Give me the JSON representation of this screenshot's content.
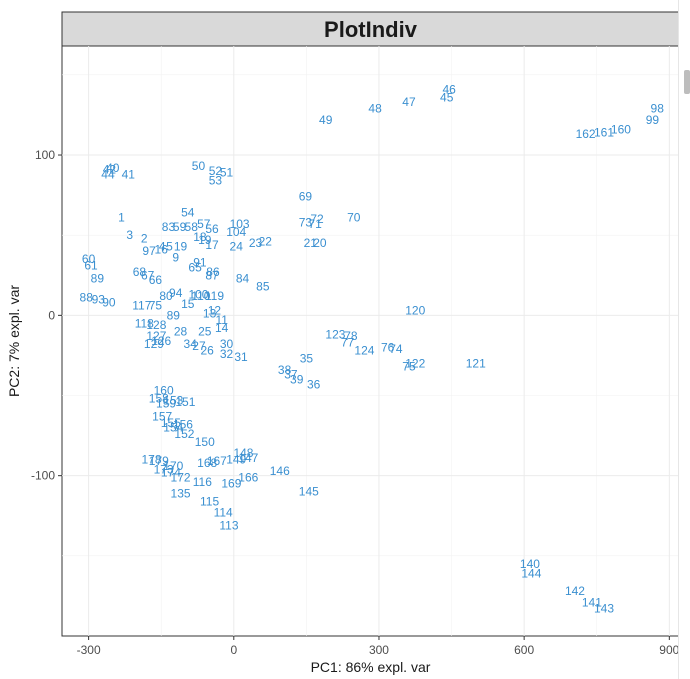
{
  "chart_data": {
    "type": "scatter",
    "title": "PlotIndiv",
    "xlabel": "PC1: 86% expl. var",
    "ylabel": "PC2: 7% expl. var",
    "xlim": [
      -355,
      920
    ],
    "ylim": [
      -200,
      168
    ],
    "x_ticks": [
      -300,
      0,
      300,
      600,
      900
    ],
    "y_ticks": [
      -100,
      0,
      100
    ],
    "grid": true,
    "legend": "none",
    "point_color": "#3a8fd0",
    "points": [
      {
        "label": "46",
        "x": 445,
        "y": 141
      },
      {
        "label": "45",
        "x": 440,
        "y": 136
      },
      {
        "label": "47",
        "x": 362,
        "y": 133
      },
      {
        "label": "48",
        "x": 292,
        "y": 129
      },
      {
        "label": "49",
        "x": 190,
        "y": 122
      },
      {
        "label": "98",
        "x": 875,
        "y": 129
      },
      {
        "label": "99",
        "x": 865,
        "y": 122
      },
      {
        "label": "160",
        "x": 800,
        "y": 116
      },
      {
        "label": "161",
        "x": 765,
        "y": 114
      },
      {
        "label": "162",
        "x": 727,
        "y": 113
      },
      {
        "label": "40",
        "x": -250,
        "y": 92
      },
      {
        "label": "42",
        "x": -257,
        "y": 91
      },
      {
        "label": "44",
        "x": -260,
        "y": 88
      },
      {
        "label": "41",
        "x": -218,
        "y": 88
      },
      {
        "label": "50",
        "x": -73,
        "y": 93
      },
      {
        "label": "52",
        "x": -38,
        "y": 90
      },
      {
        "label": "51",
        "x": -15,
        "y": 89
      },
      {
        "label": "53",
        "x": -38,
        "y": 84
      },
      {
        "label": "69",
        "x": 148,
        "y": 74
      },
      {
        "label": "54",
        "x": -95,
        "y": 64
      },
      {
        "label": "1",
        "x": -232,
        "y": 61
      },
      {
        "label": "57",
        "x": -62,
        "y": 57
      },
      {
        "label": "103",
        "x": 12,
        "y": 57
      },
      {
        "label": "70",
        "x": 248,
        "y": 61
      },
      {
        "label": "72",
        "x": 172,
        "y": 60
      },
      {
        "label": "73",
        "x": 148,
        "y": 58
      },
      {
        "label": "71",
        "x": 168,
        "y": 57
      },
      {
        "label": "83",
        "x": -135,
        "y": 55
      },
      {
        "label": "59",
        "x": -112,
        "y": 55
      },
      {
        "label": "58",
        "x": -88,
        "y": 55
      },
      {
        "label": "56",
        "x": -45,
        "y": 54
      },
      {
        "label": "104",
        "x": 5,
        "y": 52
      },
      {
        "label": "3",
        "x": -215,
        "y": 50
      },
      {
        "label": "2",
        "x": -185,
        "y": 48
      },
      {
        "label": "18",
        "x": -70,
        "y": 49
      },
      {
        "label": "19",
        "x": -60,
        "y": 47
      },
      {
        "label": "17",
        "x": -45,
        "y": 44
      },
      {
        "label": "24",
        "x": 5,
        "y": 43
      },
      {
        "label": "23",
        "x": 45,
        "y": 45
      },
      {
        "label": "22",
        "x": 65,
        "y": 46
      },
      {
        "label": "21",
        "x": 158,
        "y": 45
      },
      {
        "label": "20",
        "x": 178,
        "y": 45
      },
      {
        "label": "97",
        "x": -175,
        "y": 40
      },
      {
        "label": "16",
        "x": -150,
        "y": 41
      },
      {
        "label": "4",
        "x": -148,
        "y": 43
      },
      {
        "label": "5",
        "x": -133,
        "y": 43
      },
      {
        "label": "19",
        "x": -110,
        "y": 43
      },
      {
        "label": "9",
        "x": -120,
        "y": 36
      },
      {
        "label": "60",
        "x": -300,
        "y": 35
      },
      {
        "label": "61",
        "x": -295,
        "y": 31
      },
      {
        "label": "65",
        "x": -80,
        "y": 30
      },
      {
        "label": "91",
        "x": -70,
        "y": 33
      },
      {
        "label": "68",
        "x": -195,
        "y": 27
      },
      {
        "label": "67",
        "x": -178,
        "y": 25
      },
      {
        "label": "66",
        "x": -162,
        "y": 22
      },
      {
        "label": "86",
        "x": -43,
        "y": 27
      },
      {
        "label": "87",
        "x": -45,
        "y": 25
      },
      {
        "label": "84",
        "x": 18,
        "y": 23
      },
      {
        "label": "85",
        "x": 60,
        "y": 18
      },
      {
        "label": "89",
        "x": -282,
        "y": 23
      },
      {
        "label": "88",
        "x": -305,
        "y": 11
      },
      {
        "label": "93",
        "x": -280,
        "y": 10
      },
      {
        "label": "90",
        "x": -258,
        "y": 8
      },
      {
        "label": "80",
        "x": -140,
        "y": 12
      },
      {
        "label": "94",
        "x": -120,
        "y": 14
      },
      {
        "label": "100",
        "x": -73,
        "y": 13
      },
      {
        "label": "110",
        "x": -68,
        "y": 12
      },
      {
        "label": "119",
        "x": -40,
        "y": 12
      },
      {
        "label": "117",
        "x": -190,
        "y": 6
      },
      {
        "label": "75",
        "x": -162,
        "y": 6
      },
      {
        "label": "15",
        "x": -95,
        "y": 7
      },
      {
        "label": "13",
        "x": -50,
        "y": 1
      },
      {
        "label": "120",
        "x": 375,
        "y": 3
      },
      {
        "label": "12",
        "x": -40,
        "y": 3
      },
      {
        "label": "11",
        "x": -25,
        "y": -3
      },
      {
        "label": "14",
        "x": -25,
        "y": -8
      },
      {
        "label": "89",
        "x": -125,
        "y": 0
      },
      {
        "label": "118",
        "x": -185,
        "y": -5
      },
      {
        "label": "128",
        "x": -160,
        "y": -6
      },
      {
        "label": "28",
        "x": -110,
        "y": -10
      },
      {
        "label": "25",
        "x": -60,
        "y": -10
      },
      {
        "label": "127",
        "x": -160,
        "y": -13
      },
      {
        "label": "126",
        "x": -150,
        "y": -16
      },
      {
        "label": "129",
        "x": -165,
        "y": -18
      },
      {
        "label": "34",
        "x": -90,
        "y": -18
      },
      {
        "label": "27",
        "x": -72,
        "y": -19
      },
      {
        "label": "26",
        "x": -55,
        "y": -22
      },
      {
        "label": "30",
        "x": -15,
        "y": -18
      },
      {
        "label": "32",
        "x": -15,
        "y": -24
      },
      {
        "label": "31",
        "x": 15,
        "y": -26
      },
      {
        "label": "123",
        "x": 210,
        "y": -12
      },
      {
        "label": "78",
        "x": 242,
        "y": -13
      },
      {
        "label": "77",
        "x": 235,
        "y": -17
      },
      {
        "label": "124",
        "x": 270,
        "y": -22
      },
      {
        "label": "76",
        "x": 318,
        "y": -20
      },
      {
        "label": "74",
        "x": 335,
        "y": -21
      },
      {
        "label": "122",
        "x": 375,
        "y": -30
      },
      {
        "label": "75",
        "x": 362,
        "y": -32
      },
      {
        "label": "121",
        "x": 500,
        "y": -30
      },
      {
        "label": "35",
        "x": 150,
        "y": -27
      },
      {
        "label": "38",
        "x": 105,
        "y": -34
      },
      {
        "label": "37",
        "x": 118,
        "y": -37
      },
      {
        "label": "39",
        "x": 130,
        "y": -40
      },
      {
        "label": "36",
        "x": 165,
        "y": -43
      },
      {
        "label": "160",
        "x": -145,
        "y": -47
      },
      {
        "label": "158",
        "x": -155,
        "y": -52
      },
      {
        "label": "153",
        "x": -125,
        "y": -53
      },
      {
        "label": "151",
        "x": -100,
        "y": -54
      },
      {
        "label": "159",
        "x": -140,
        "y": -55
      },
      {
        "label": "157",
        "x": -148,
        "y": -63
      },
      {
        "label": "155",
        "x": -130,
        "y": -67
      },
      {
        "label": "156",
        "x": -105,
        "y": -68
      },
      {
        "label": "154",
        "x": -125,
        "y": -70
      },
      {
        "label": "152",
        "x": -102,
        "y": -74
      },
      {
        "label": "150",
        "x": -60,
        "y": -79
      },
      {
        "label": "148",
        "x": 20,
        "y": -86
      },
      {
        "label": "147",
        "x": 30,
        "y": -89
      },
      {
        "label": "149",
        "x": 5,
        "y": -90
      },
      {
        "label": "167",
        "x": -35,
        "y": -91
      },
      {
        "label": "168",
        "x": -55,
        "y": -92
      },
      {
        "label": "178",
        "x": -170,
        "y": -90
      },
      {
        "label": "179",
        "x": -155,
        "y": -91
      },
      {
        "label": "170",
        "x": -125,
        "y": -94
      },
      {
        "label": "173",
        "x": -145,
        "y": -96
      },
      {
        "label": "174",
        "x": -130,
        "y": -98
      },
      {
        "label": "172",
        "x": -110,
        "y": -101
      },
      {
        "label": "146",
        "x": 95,
        "y": -97
      },
      {
        "label": "166",
        "x": 30,
        "y": -101
      },
      {
        "label": "116",
        "x": -65,
        "y": -104
      },
      {
        "label": "169",
        "x": -5,
        "y": -105
      },
      {
        "label": "145",
        "x": 155,
        "y": -110
      },
      {
        "label": "135",
        "x": -110,
        "y": -111
      },
      {
        "label": "115",
        "x": -50,
        "y": -116
      },
      {
        "label": "114",
        "x": -22,
        "y": -123
      },
      {
        "label": "113",
        "x": -10,
        "y": -131
      },
      {
        "label": "140",
        "x": 612,
        "y": -155
      },
      {
        "label": "144",
        "x": 615,
        "y": -161
      },
      {
        "label": "142",
        "x": 705,
        "y": -172
      },
      {
        "label": "141",
        "x": 740,
        "y": -179
      },
      {
        "label": "143",
        "x": 765,
        "y": -183
      }
    ]
  }
}
